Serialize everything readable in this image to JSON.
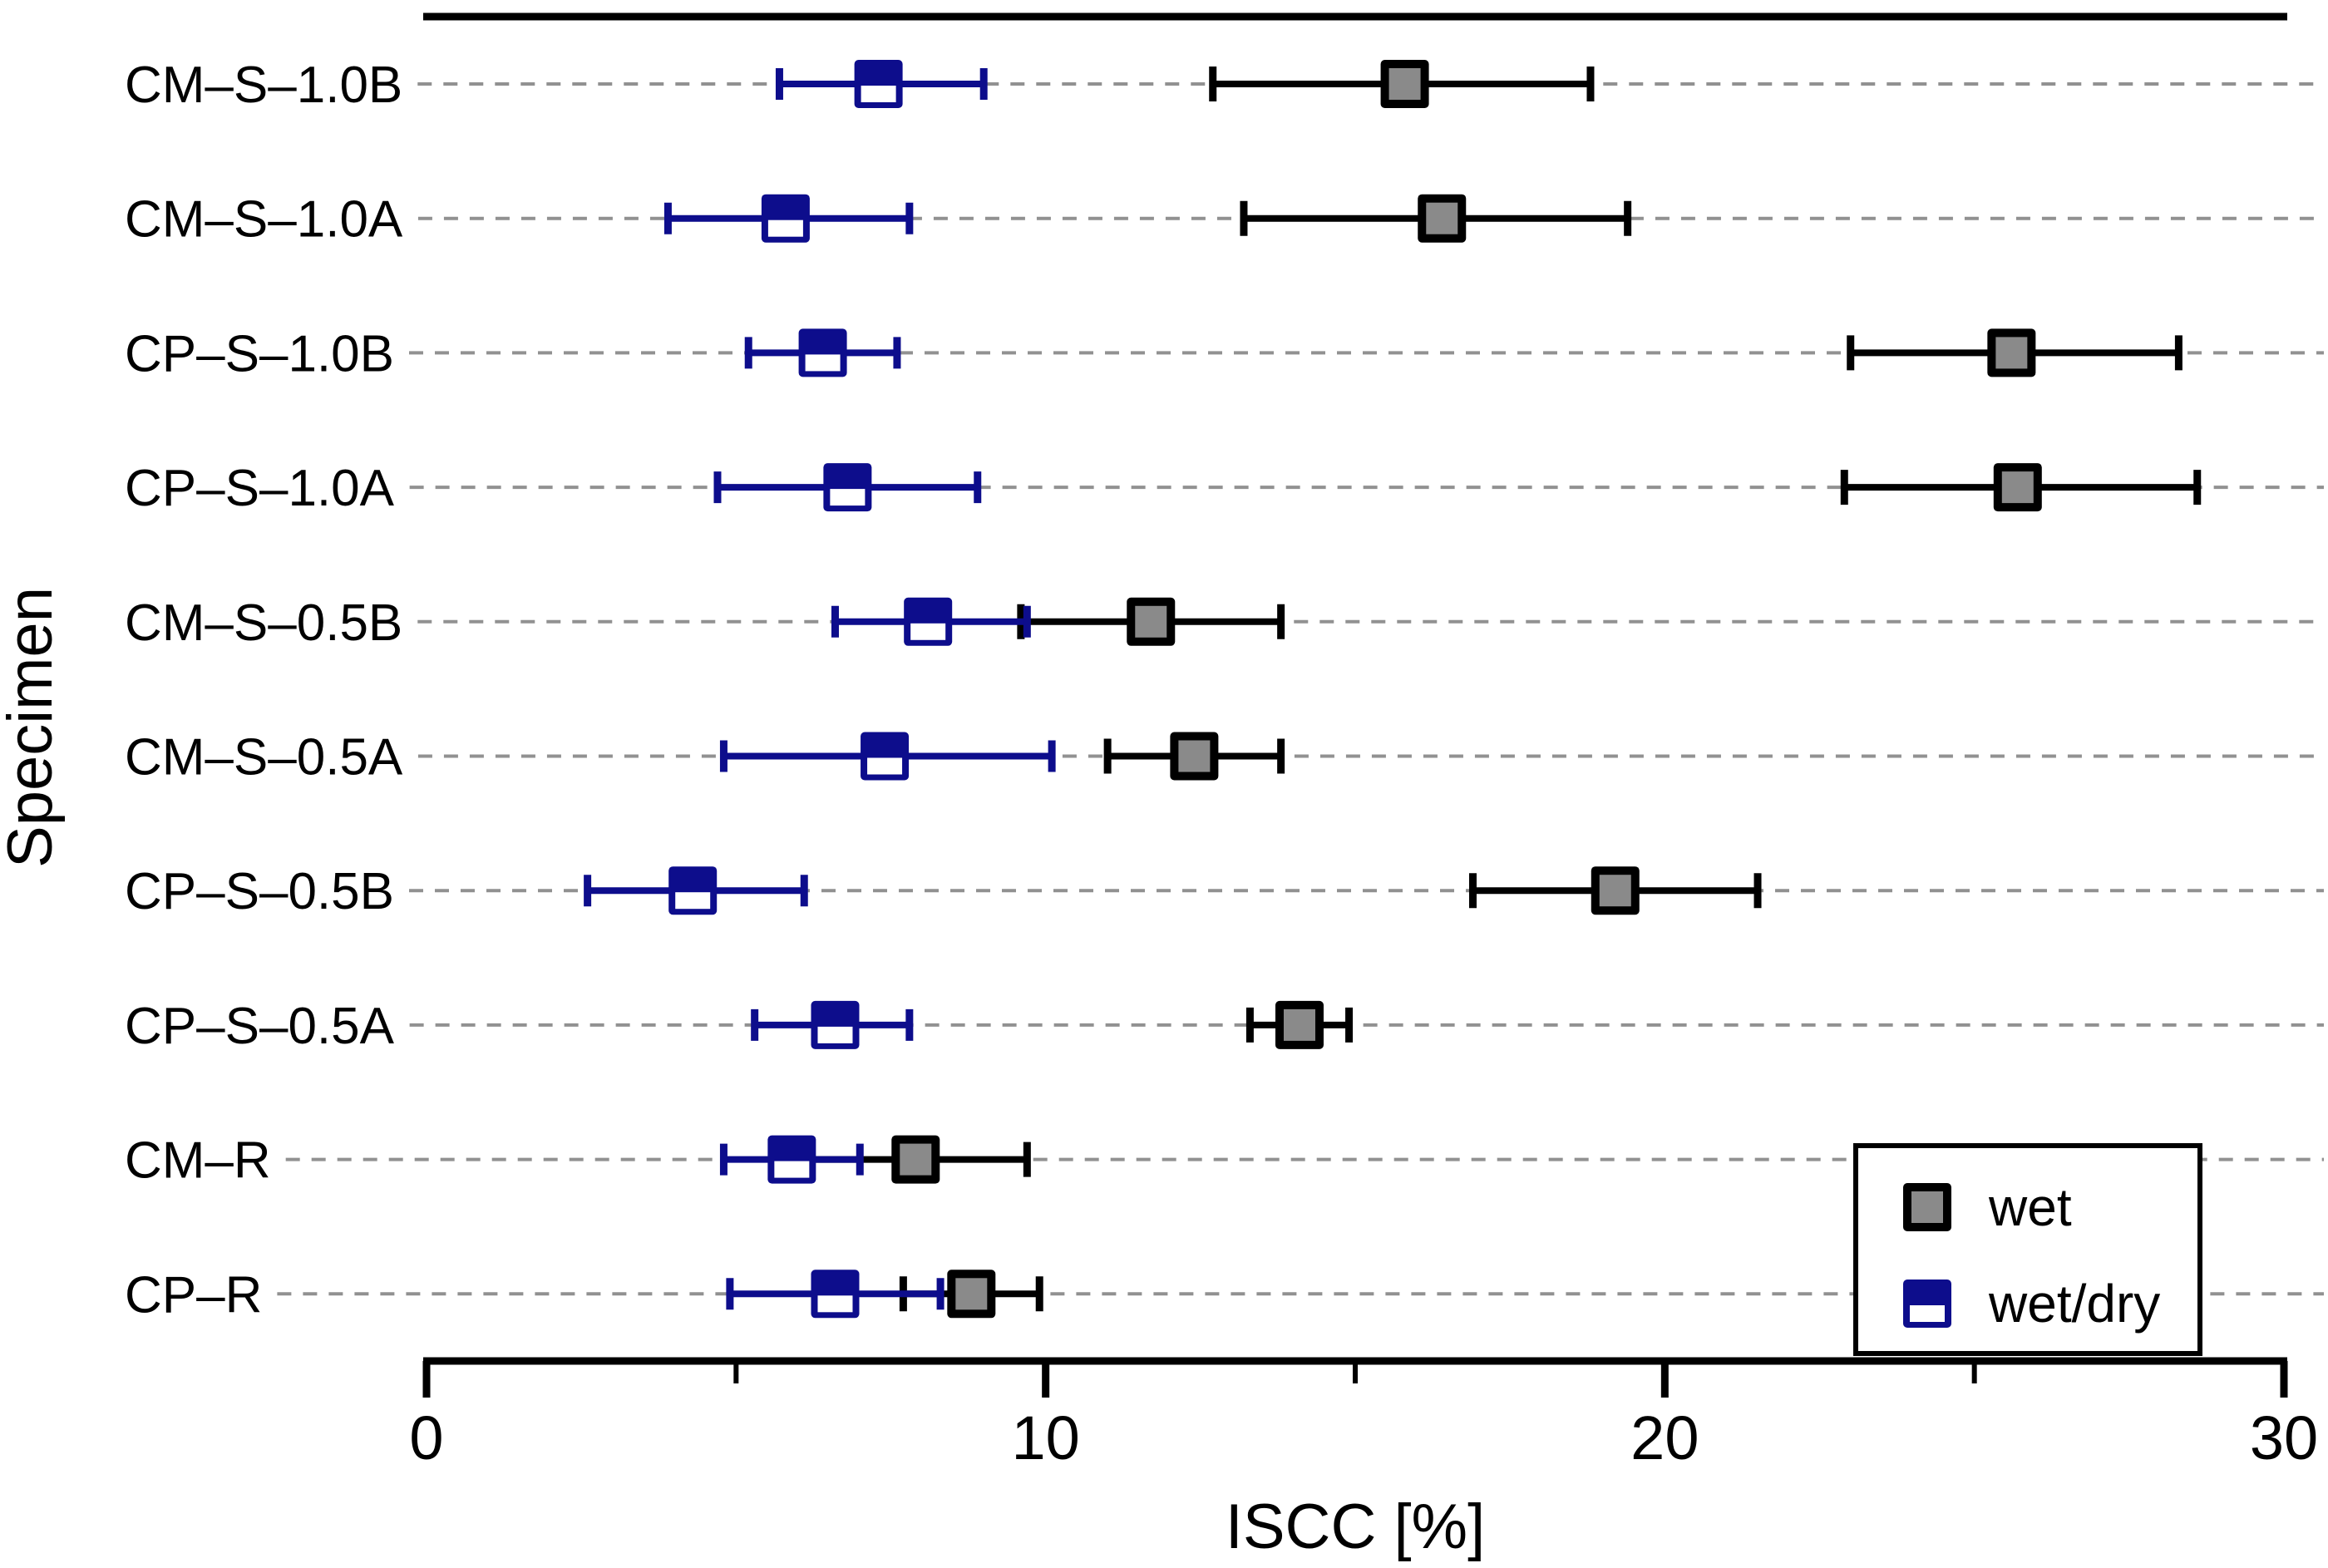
{
  "chart_data": {
    "type": "scatter",
    "title": "",
    "xlabel": "ISCC [%]",
    "ylabel": "Specimen",
    "xlim": [
      0,
      30
    ],
    "x_ticks_major": [
      0,
      10,
      20,
      30
    ],
    "x_ticks_minor": [
      5,
      15,
      25
    ],
    "grid": "dashed horizontal per category",
    "legend_position": "lower right",
    "categories": [
      "CM–S–1.0B",
      "CM–S–1.0A",
      "CP–S–1.0B",
      "CP–S–1.0A",
      "CM–S–0.5B",
      "CM–S–0.5A",
      "CP–S–0.5B",
      "CP–S–0.5A",
      "CM–R",
      "CP–R"
    ],
    "series": [
      {
        "name": "wet",
        "marker": "gray-filled-square-black-border",
        "fill_color": "#8a8a8a",
        "border_color": "#000000",
        "points": [
          {
            "category": "CM–S–1.0B",
            "value": 15.8,
            "err_low": 12.7,
            "err_high": 18.8
          },
          {
            "category": "CM–S–1.0A",
            "value": 16.4,
            "err_low": 13.2,
            "err_high": 19.4
          },
          {
            "category": "CP–S–1.0B",
            "value": 25.6,
            "err_low": 23.0,
            "err_high": 28.3
          },
          {
            "category": "CP–S–1.0A",
            "value": 25.7,
            "err_low": 22.9,
            "err_high": 28.6
          },
          {
            "category": "CM–S–0.5B",
            "value": 11.7,
            "err_low": 9.6,
            "err_high": 13.8
          },
          {
            "category": "CM–S–0.5A",
            "value": 12.4,
            "err_low": 11.0,
            "err_high": 13.8
          },
          {
            "category": "CP–S–0.5B",
            "value": 19.2,
            "err_low": 16.9,
            "err_high": 21.5
          },
          {
            "category": "CP–S–0.5A",
            "value": 14.1,
            "err_low": 13.3,
            "err_high": 14.9
          },
          {
            "category": "CM–R",
            "value": 7.9,
            "err_low": 6.1,
            "err_high": 9.7
          },
          {
            "category": "CP–R",
            "value": 8.8,
            "err_low": 7.7,
            "err_high": 9.9
          }
        ]
      },
      {
        "name": "wet/dry",
        "marker": "blue-half-filled-square",
        "fill_color": "#0d0d8c",
        "border_color": "#0d0d8c",
        "points": [
          {
            "category": "CM–S–1.0B",
            "value": 7.3,
            "err_low": 5.7,
            "err_high": 9.0
          },
          {
            "category": "CM–S–1.0A",
            "value": 5.8,
            "err_low": 3.9,
            "err_high": 7.8
          },
          {
            "category": "CP–S–1.0B",
            "value": 6.4,
            "err_low": 5.2,
            "err_high": 7.6
          },
          {
            "category": "CP–S–1.0A",
            "value": 6.8,
            "err_low": 4.7,
            "err_high": 8.9
          },
          {
            "category": "CM–S–0.5B",
            "value": 8.1,
            "err_low": 6.6,
            "err_high": 9.7
          },
          {
            "category": "CM–S–0.5A",
            "value": 7.4,
            "err_low": 4.8,
            "err_high": 10.1
          },
          {
            "category": "CP–S–0.5B",
            "value": 4.3,
            "err_low": 2.6,
            "err_high": 6.1
          },
          {
            "category": "CP–S–0.5A",
            "value": 6.6,
            "err_low": 5.3,
            "err_high": 7.8
          },
          {
            "category": "CM–R",
            "value": 5.9,
            "err_low": 4.8,
            "err_high": 7.0
          },
          {
            "category": "CP–R",
            "value": 6.6,
            "err_low": 4.9,
            "err_high": 8.3
          }
        ]
      }
    ],
    "legend": [
      {
        "label": "wet",
        "swatch": "gray-filled-square-black-border"
      },
      {
        "label": "wet/dry",
        "swatch": "blue-half-filled-square"
      }
    ],
    "colors": {
      "wet_fill": "#8a8a8a",
      "wet_border": "#000000",
      "wetdry_blue": "#0d0d8c",
      "gridline_gray": "#919191",
      "axis_black": "#000000",
      "background": "#ffffff"
    }
  }
}
